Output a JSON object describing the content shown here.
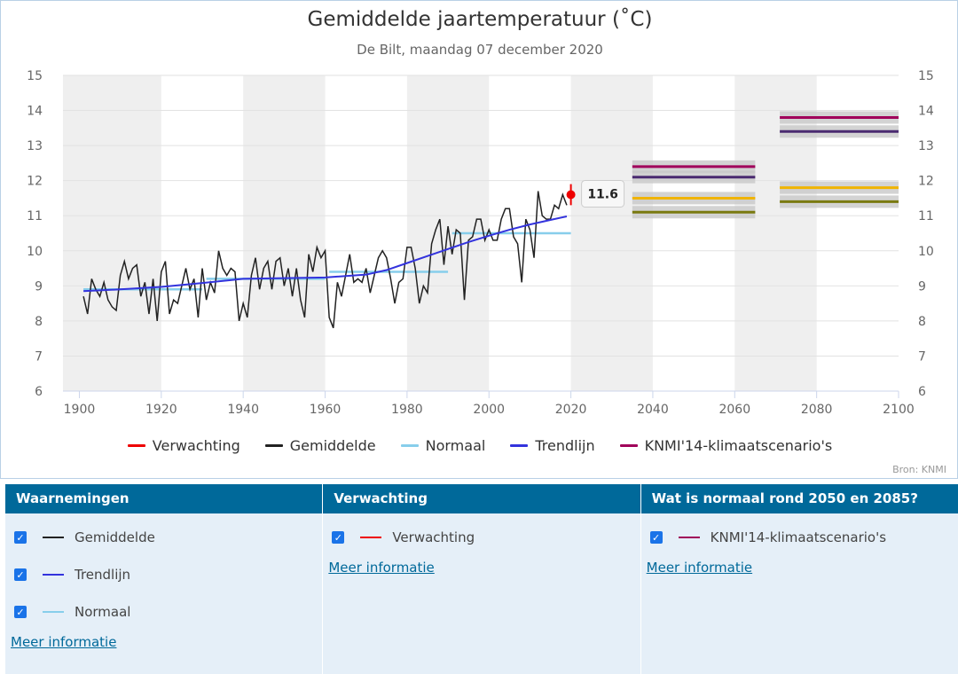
{
  "chart_data": {
    "type": "line",
    "title": "Gemiddelde jaartemperatuur (˚C)",
    "subtitle": "De Bilt, maandag 07 december 2020",
    "credits": "Bron: KNMI",
    "xlim": [
      1896,
      2100
    ],
    "ylim": [
      6,
      15
    ],
    "x_ticks": [
      1900,
      1920,
      1940,
      1960,
      1980,
      2000,
      2020,
      2040,
      2060,
      2080,
      2100
    ],
    "y_ticks": [
      6,
      7,
      8,
      9,
      10,
      11,
      12,
      13,
      14,
      15
    ],
    "grid": true,
    "legend_position": "bottom",
    "legend": [
      {
        "label": "Verwachting",
        "color": "#ee0000"
      },
      {
        "label": "Gemiddelde",
        "color": "#222222"
      },
      {
        "label": "Normaal",
        "color": "#87ceeb"
      },
      {
        "label": "Trendlijn",
        "color": "#3333dd"
      },
      {
        "label": "KNMI'14-klimaatscenario's",
        "color": "#a0005a"
      }
    ],
    "shaded_bands": [
      [
        1896,
        1920
      ],
      [
        1940,
        1960
      ],
      [
        1980,
        2000
      ],
      [
        2020,
        2040
      ],
      [
        2060,
        2080
      ]
    ],
    "series": [
      {
        "name": "Gemiddelde",
        "color": "#222222",
        "x": [
          1901,
          1902,
          1903,
          1904,
          1905,
          1906,
          1907,
          1908,
          1909,
          1910,
          1911,
          1912,
          1913,
          1914,
          1915,
          1916,
          1917,
          1918,
          1919,
          1920,
          1921,
          1922,
          1923,
          1924,
          1925,
          1926,
          1927,
          1928,
          1929,
          1930,
          1931,
          1932,
          1933,
          1934,
          1935,
          1936,
          1937,
          1938,
          1939,
          1940,
          1941,
          1942,
          1943,
          1944,
          1945,
          1946,
          1947,
          1948,
          1949,
          1950,
          1951,
          1952,
          1953,
          1954,
          1955,
          1956,
          1957,
          1958,
          1959,
          1960,
          1961,
          1962,
          1963,
          1964,
          1965,
          1966,
          1967,
          1968,
          1969,
          1970,
          1971,
          1972,
          1973,
          1974,
          1975,
          1976,
          1977,
          1978,
          1979,
          1980,
          1981,
          1982,
          1983,
          1984,
          1985,
          1986,
          1987,
          1988,
          1989,
          1990,
          1991,
          1992,
          1993,
          1994,
          1995,
          1996,
          1997,
          1998,
          1999,
          2000,
          2001,
          2002,
          2003,
          2004,
          2005,
          2006,
          2007,
          2008,
          2009,
          2010,
          2011,
          2012,
          2013,
          2014,
          2015,
          2016,
          2017,
          2018,
          2019
        ],
        "values": [
          8.7,
          8.2,
          9.2,
          8.9,
          8.7,
          9.1,
          8.6,
          8.4,
          8.3,
          9.3,
          9.7,
          9.2,
          9.5,
          9.6,
          8.7,
          9.1,
          8.2,
          9.2,
          8.0,
          9.4,
          9.7,
          8.2,
          8.6,
          8.5,
          9.0,
          9.5,
          8.9,
          9.2,
          8.1,
          9.5,
          8.6,
          9.1,
          8.8,
          10.0,
          9.5,
          9.3,
          9.5,
          9.4,
          8.0,
          8.5,
          8.1,
          9.3,
          9.8,
          8.9,
          9.5,
          9.7,
          8.9,
          9.7,
          9.8,
          9.0,
          9.5,
          8.7,
          9.5,
          8.6,
          8.1,
          9.9,
          9.4,
          10.1,
          9.8,
          10.0,
          8.1,
          7.8,
          9.1,
          8.7,
          9.3,
          9.9,
          9.1,
          9.2,
          9.1,
          9.5,
          8.8,
          9.3,
          9.8,
          10.0,
          9.8,
          9.2,
          8.5,
          9.1,
          9.2,
          10.1,
          10.1,
          9.5,
          8.5,
          9.0,
          8.8,
          10.2,
          10.6,
          10.9,
          9.6,
          10.7,
          9.9,
          10.6,
          10.5,
          8.6,
          10.3,
          10.4,
          10.9,
          10.9,
          10.3,
          10.6,
          10.3,
          10.3,
          10.9,
          11.2,
          11.2,
          10.4,
          10.2,
          9.1,
          10.9,
          10.6,
          9.8,
          11.7,
          11.0,
          10.9,
          10.9,
          11.3,
          11.2,
          11.6,
          11.3
        ]
      },
      {
        "name": "Trendlijn",
        "color": "#3333dd",
        "x": [
          1901,
          1910,
          1920,
          1930,
          1940,
          1950,
          1960,
          1970,
          1975,
          1980,
          1985,
          1990,
          1995,
          2000,
          2005,
          2010,
          2015,
          2019
        ],
        "values": [
          8.85,
          8.9,
          8.97,
          9.08,
          9.2,
          9.22,
          9.24,
          9.32,
          9.45,
          9.65,
          9.85,
          10.05,
          10.25,
          10.43,
          10.6,
          10.75,
          10.88,
          10.98
        ]
      }
    ],
    "normals": [
      {
        "x": [
          1901,
          1930
        ],
        "value": 8.9
      },
      {
        "x": [
          1931,
          1960
        ],
        "value": 9.2
      },
      {
        "x": [
          1961,
          1990
        ],
        "value": 9.4
      },
      {
        "x": [
          1991,
          2020
        ],
        "value": 10.5
      }
    ],
    "forecast": {
      "year": 2020,
      "value": 11.6,
      "low": 11.3,
      "high": 11.9,
      "label": "11.6"
    },
    "scenarios": [
      {
        "period": [
          2035,
          2065
        ],
        "lines": [
          {
            "value": 12.4,
            "color": "#a0005a"
          },
          {
            "value": 12.1,
            "color": "#4a2a70"
          },
          {
            "value": 11.5,
            "color": "#f0b400"
          },
          {
            "value": 11.1,
            "color": "#7a7a10"
          }
        ]
      },
      {
        "period": [
          2071,
          2100
        ],
        "lines": [
          {
            "value": 13.8,
            "color": "#a0005a"
          },
          {
            "value": 13.4,
            "color": "#4a2a70"
          },
          {
            "value": 11.8,
            "color": "#f0b400"
          },
          {
            "value": 11.4,
            "color": "#7a7a10"
          }
        ]
      }
    ]
  },
  "panels": {
    "waarnemingen": {
      "title": "Waarnemingen",
      "items": [
        {
          "label": "Gemiddelde",
          "color": "#222222"
        },
        {
          "label": "Trendlijn",
          "color": "#3333dd"
        },
        {
          "label": "Normaal",
          "color": "#87ceeb"
        }
      ],
      "link": "Meer informatie"
    },
    "verwachting": {
      "title": "Verwachting",
      "items": [
        {
          "label": "Verwachting",
          "color": "#ee0000"
        }
      ],
      "link": "Meer informatie"
    },
    "normaal": {
      "title": "Wat is normaal rond 2050 en 2085?",
      "items": [
        {
          "label": "KNMI'14-klimaatscenario's",
          "color": "#a0005a"
        }
      ],
      "link": "Meer informatie"
    }
  }
}
